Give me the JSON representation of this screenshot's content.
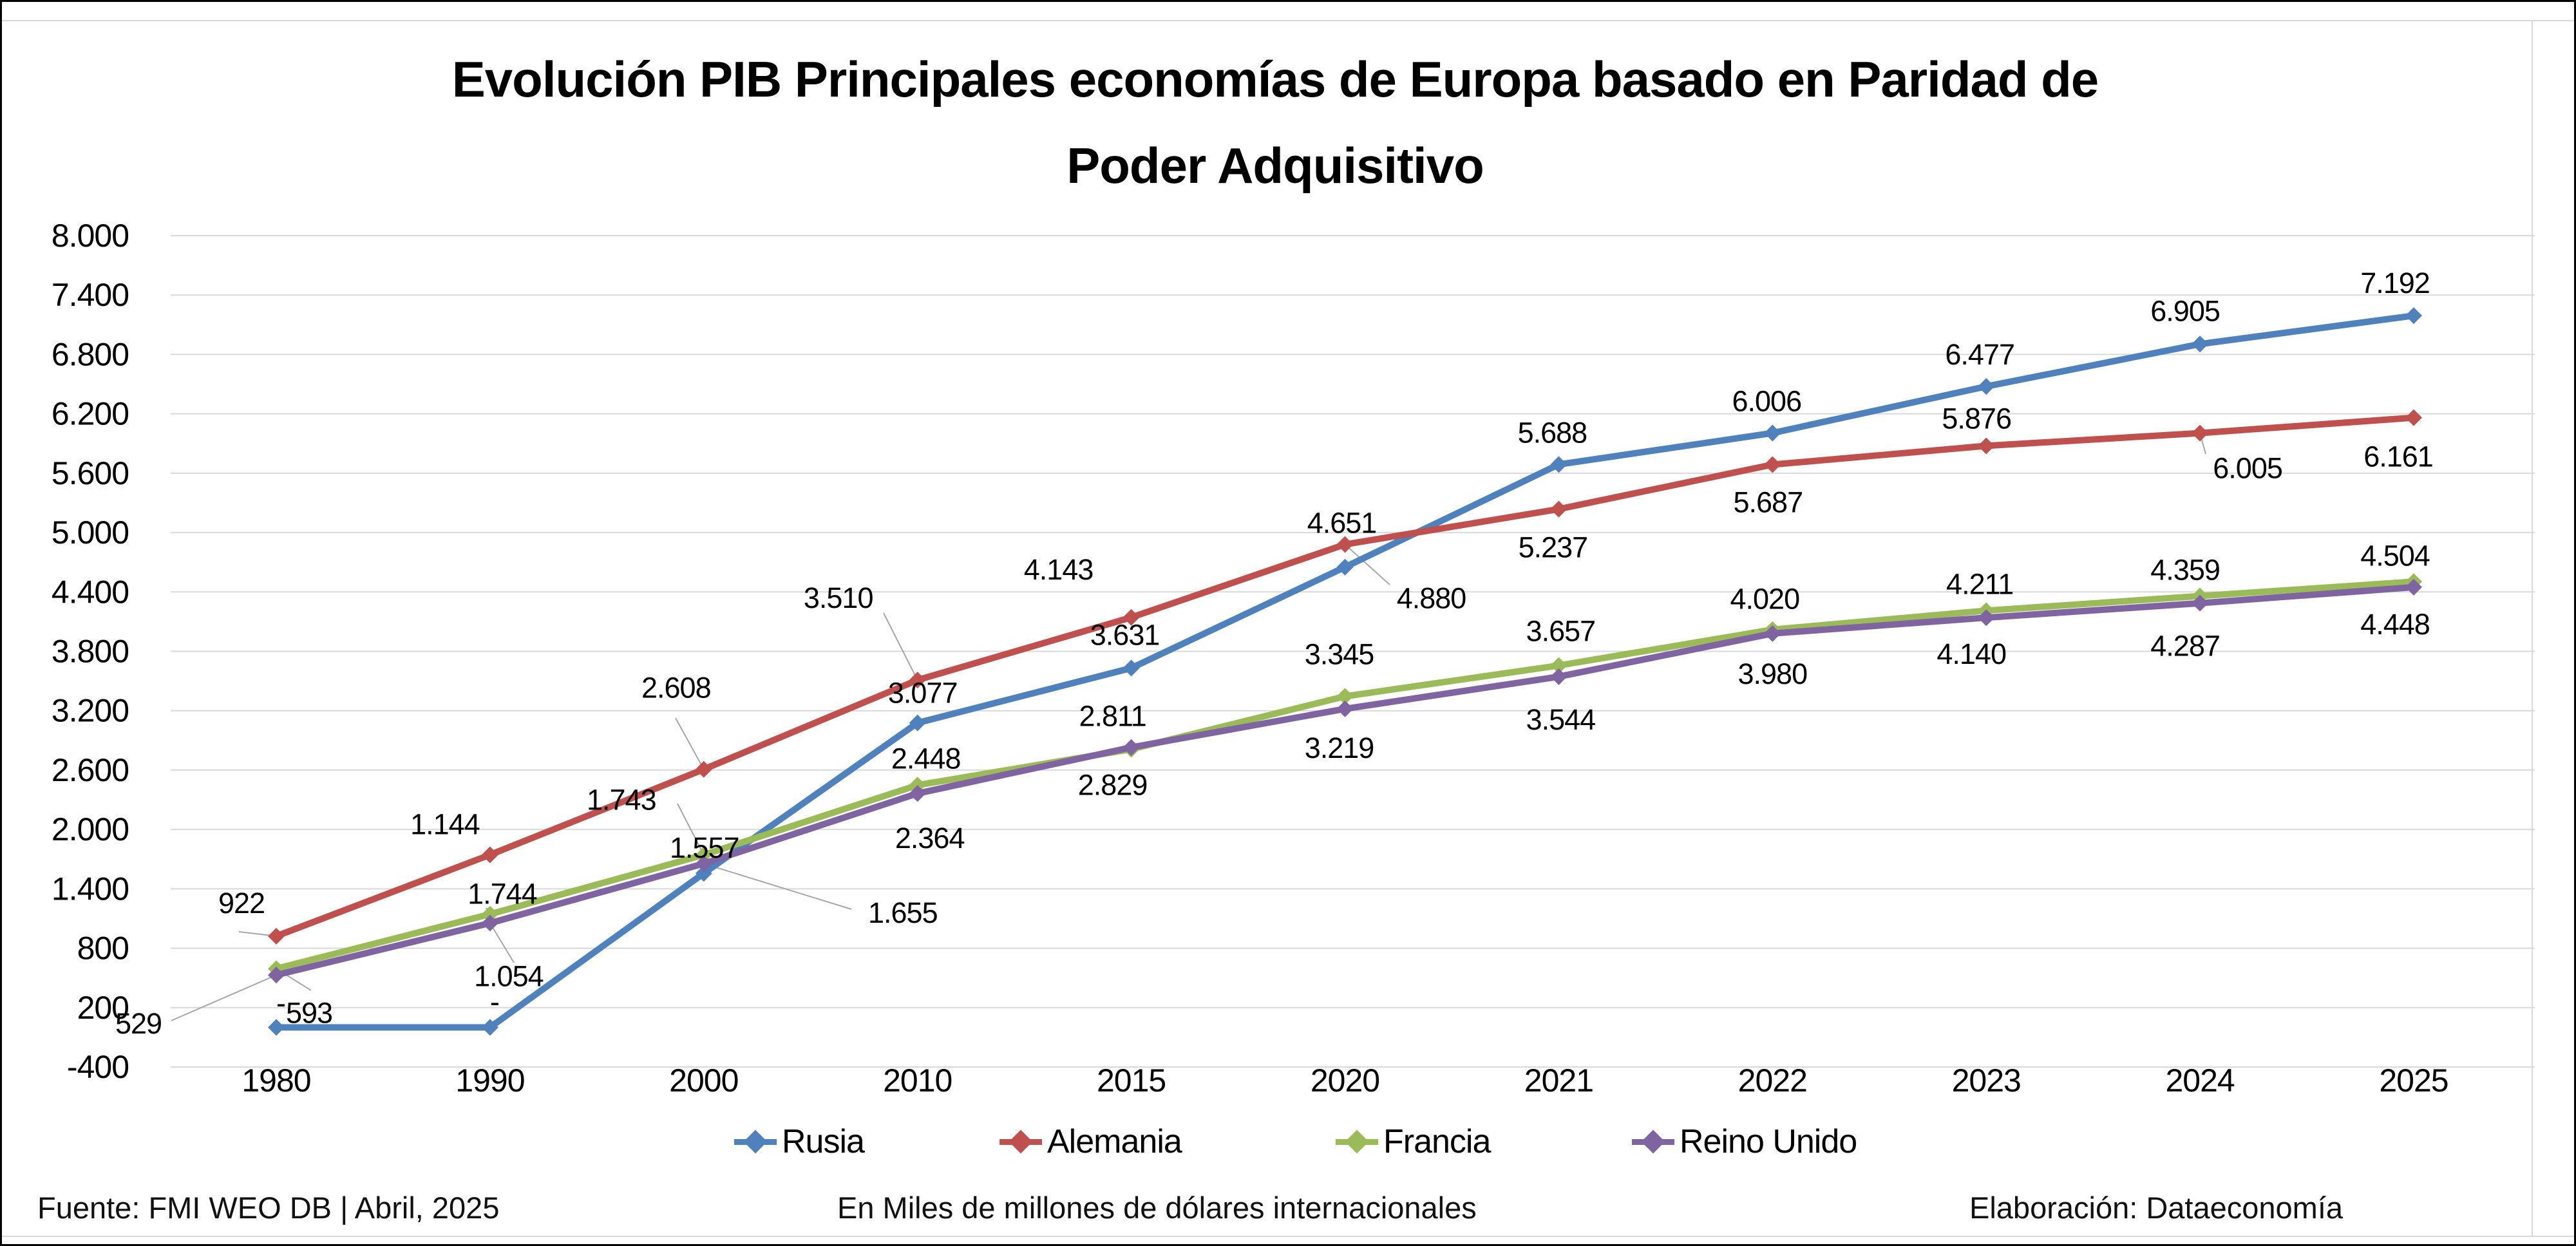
{
  "title": {
    "line1": "Evolución PIB Principales economías de Europa basado en Paridad de",
    "line2": "Poder Adquisitivo"
  },
  "footer": {
    "source": "Fuente: FMI WEO DB | Abril, 2025",
    "units": "En Miles de millones de dólares internacionales",
    "credit": "Elaboración: Dataeconomía"
  },
  "chart_data": {
    "type": "line",
    "title": "Evolución PIB Principales economías de Europa basado en Paridad de Poder Adquisitivo",
    "xlabel": "",
    "ylabel": "",
    "units_note": "En Miles de millones de dólares internacionales",
    "categories": [
      "1980",
      "1990",
      "2000",
      "2010",
      "2015",
      "2020",
      "2021",
      "2022",
      "2023",
      "2024",
      "2025"
    ],
    "ylim": [
      -400,
      8000
    ],
    "y_ticks": {
      "values": [
        8000,
        7400,
        6800,
        6200,
        5600,
        5000,
        4400,
        3800,
        3200,
        2600,
        2000,
        1400,
        800,
        200,
        -400
      ],
      "labels": [
        "8.000",
        "7.400",
        "6.800",
        "6.200",
        "5.600",
        "5.000",
        "4.400",
        "3.800",
        "3.200",
        "2.600",
        "2.000",
        "1.400",
        "800",
        "200",
        "-400"
      ]
    },
    "grid": true,
    "grid_color": "#d9d9d9",
    "leader_color": "#a6a6a6",
    "legend_position": "bottom",
    "series": [
      {
        "name": "Rusia",
        "color": "#4F81BD",
        "values": [
          0,
          0,
          1557,
          3077,
          3631,
          4651,
          5688,
          6006,
          6477,
          6905,
          7192
        ],
        "labels": [
          "-",
          "-",
          "1.557",
          "3.077",
          "3.631",
          "4.651",
          "5.688",
          "6.006",
          "6.477",
          "6.905",
          "7.192"
        ],
        "label_offsets": [
          [
            7,
            -38
          ],
          [
            7,
            -40
          ],
          [
            1,
            -40
          ],
          [
            8,
            -47
          ],
          [
            -10,
            -52
          ],
          [
            -5,
            -69
          ],
          [
            -10,
            -50
          ],
          [
            -9,
            -50
          ],
          [
            -10,
            -50
          ],
          [
            -23,
            -52
          ],
          [
            -29,
            -51
          ]
        ],
        "leader_lines": []
      },
      {
        "name": "Alemania",
        "color": "#C0504D",
        "values": [
          922,
          1744,
          2608,
          3510,
          4143,
          4880,
          5237,
          5687,
          5876,
          6005,
          6161
        ],
        "labels": [
          "922",
          "1.744",
          "2.608",
          "3.510",
          "4.143",
          "4.880",
          "5.237",
          "5.687",
          "5.876",
          "6.005",
          "6.161"
        ],
        "label_offsets": [
          [
            -54,
            -52
          ],
          [
            19,
            60
          ],
          [
            -43,
            -127
          ],
          [
            -123,
            -128
          ],
          [
            -113,
            -75
          ],
          [
            134,
            83
          ],
          [
            -9,
            59
          ],
          [
            -7,
            58
          ],
          [
            -15,
            -43
          ],
          [
            74,
            54
          ],
          [
            -24,
            60
          ]
        ],
        "leader_lines": [
          [
            0,
            371,
            1447
          ],
          [
            2,
            1049,
            1115
          ],
          [
            3,
            1372,
            952
          ],
          [
            4,
            1750,
            965
          ],
          [
            5,
            2158,
            908
          ],
          [
            9,
            3425,
            705
          ]
        ]
      },
      {
        "name": "Francia",
        "color": "#9BBB59",
        "values": [
          593,
          1144,
          1743,
          2448,
          2811,
          3345,
          3657,
          4020,
          4211,
          4359,
          4504
        ],
        "labels": [
          "593",
          "1.144",
          "1.743",
          "2.448",
          "2.811",
          "3.345",
          "3.657",
          "4.020",
          "4.211",
          "4.359",
          "4.504"
        ],
        "label_offsets": [
          [
            51,
            68
          ],
          [
            -70,
            -140
          ],
          [
            -128,
            -86
          ],
          [
            13,
            -42
          ],
          [
            -29,
            -52
          ],
          [
            -9,
            -66
          ],
          [
            3,
            -54
          ],
          [
            -12,
            -48
          ],
          [
            -10,
            -42
          ],
          [
            -23,
            -41
          ],
          [
            -29,
            -41
          ]
        ],
        "leader_lines": [
          [
            0,
            483,
            1538
          ],
          [
            1,
            755,
            1410
          ],
          [
            2,
            1052,
            1248
          ]
        ]
      },
      {
        "name": "Reino Unido",
        "color": "#8064A2",
        "values": [
          529,
          1054,
          1655,
          2364,
          2829,
          3219,
          3544,
          3980,
          4140,
          4287,
          4448
        ],
        "labels": [
          "529",
          "1.054",
          "1.655",
          "2.364",
          "2.829",
          "3.219",
          "3.544",
          "3.980",
          "4.140",
          "4.287",
          "4.448"
        ],
        "label_offsets": [
          [
            -214,
            75
          ],
          [
            29,
            82
          ],
          [
            309,
            76
          ],
          [
            19,
            69
          ],
          [
            -29,
            58
          ],
          [
            -9,
            60
          ],
          [
            3,
            66
          ],
          [
            0,
            62
          ],
          [
            -23,
            56
          ],
          [
            -23,
            66
          ],
          [
            -29,
            57
          ]
        ],
        "leader_lines": [
          [
            0,
            266,
            1585
          ],
          [
            1,
            798,
            1495
          ],
          [
            2,
            1322,
            1412
          ]
        ]
      }
    ]
  }
}
